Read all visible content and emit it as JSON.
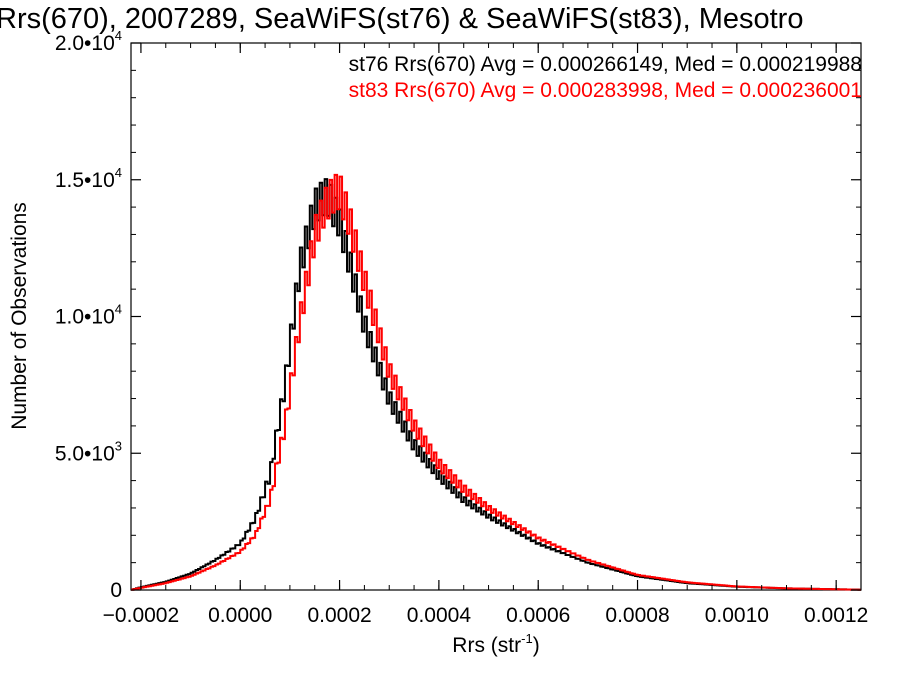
{
  "chart_data": {
    "type": "line",
    "title": "Rrs(670), 2007289, SeaWiFS(st76) & SeaWiFS(st83), Mesotro",
    "xlabel_main": "Rrs (str",
    "xlabel_sup": "-1",
    "xlabel_end": ")",
    "ylabel": "Number of Observations",
    "xlim": [
      -0.00022,
      0.00125
    ],
    "ylim": [
      0,
      20000
    ],
    "x_ticks": [
      {
        "v": -0.0002,
        "label": "−0.0002"
      },
      {
        "v": 0.0,
        "label": "0.0000"
      },
      {
        "v": 0.0002,
        "label": "0.0002"
      },
      {
        "v": 0.0004,
        "label": "0.0004"
      },
      {
        "v": 0.0006,
        "label": "0.0006"
      },
      {
        "v": 0.0008,
        "label": "0.0008"
      },
      {
        "v": 0.001,
        "label": "0.0010"
      },
      {
        "v": 0.0012,
        "label": "0.0012"
      }
    ],
    "y_ticks": [
      {
        "v": 0,
        "mant": "0",
        "exp": ""
      },
      {
        "v": 5000,
        "mant": "5.0•10",
        "exp": "3"
      },
      {
        "v": 10000,
        "mant": "1.0•10",
        "exp": "4"
      },
      {
        "v": 15000,
        "mant": "1.5•10",
        "exp": "4"
      },
      {
        "v": 20000,
        "mant": "2.0•10",
        "exp": "4"
      }
    ],
    "legend": [
      {
        "text": "st76 Rrs(670) Avg = 0.000266149, Med = 0.000219988",
        "color": "#000000"
      },
      {
        "text": "st83 Rrs(670) Avg = 0.000283998, Med = 0.000236001",
        "color": "#ff0000"
      }
    ],
    "legend_position": "top-right",
    "series": [
      {
        "color": "#000000",
        "x": [
          -0.00022,
          -0.0002,
          -0.00015,
          -0.0001,
          -5e-05,
          0.0,
          3e-05,
          6e-05,
          9e-05,
          0.00012,
          0.00015,
          0.00017,
          0.00018,
          0.00019,
          0.0002,
          0.00022,
          0.00025,
          0.0003,
          0.00035,
          0.0004,
          0.00045,
          0.0005,
          0.0006,
          0.0007,
          0.0008,
          0.0009,
          0.001,
          0.0011,
          0.00125
        ],
        "y": [
          0,
          100,
          300,
          600,
          1100,
          1700,
          2600,
          4200,
          7500,
          11800,
          14000,
          14400,
          14300,
          13800,
          13500,
          12000,
          9700,
          7000,
          5300,
          4200,
          3300,
          2700,
          1700,
          1000,
          500,
          250,
          120,
          60,
          10
        ]
      },
      {
        "color": "#ff0000",
        "x": [
          -0.00022,
          -0.0002,
          -0.00015,
          -0.0001,
          -5e-05,
          0.0,
          3e-05,
          6e-05,
          9e-05,
          0.00012,
          0.00015,
          0.00017,
          0.00018,
          0.00019,
          0.0002,
          0.00022,
          0.00025,
          0.0003,
          0.00035,
          0.0004,
          0.00045,
          0.0005,
          0.0006,
          0.0007,
          0.0008,
          0.0009,
          0.001,
          0.0011,
          0.00125
        ],
        "y": [
          0,
          80,
          250,
          500,
          900,
          1400,
          2000,
          3300,
          6000,
          9800,
          13000,
          14000,
          14300,
          14500,
          14600,
          13500,
          11300,
          8000,
          6000,
          4600,
          3700,
          3000,
          1900,
          1100,
          550,
          280,
          130,
          60,
          10
        ]
      }
    ]
  }
}
